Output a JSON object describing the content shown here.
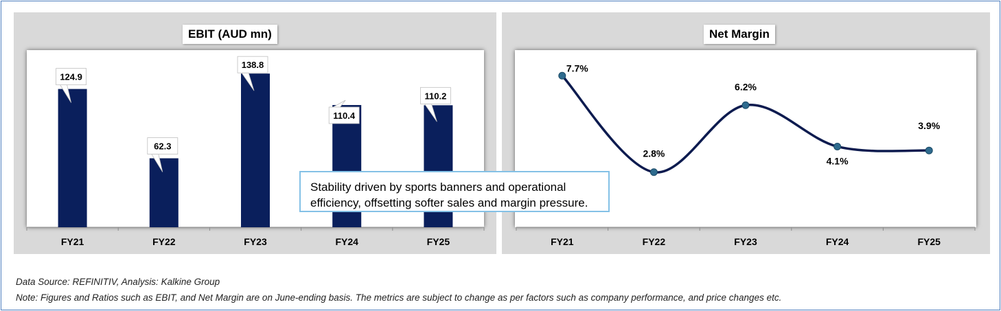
{
  "colors": {
    "bar": "#0a1f5c",
    "line": "#0d1b4f",
    "marker": "#2e6b8e",
    "callout_border": "#84c1e6",
    "panel": "#d9d9d9"
  },
  "chart_data": [
    {
      "type": "bar",
      "title": "EBIT (AUD mn)",
      "categories": [
        "FY21",
        "FY22",
        "FY23",
        "FY24",
        "FY25"
      ],
      "values": [
        124.9,
        62.3,
        138.8,
        110.4,
        110.2
      ],
      "data_labels": [
        "124.9",
        "62.3",
        "138.8",
        "110.4",
        "110.2"
      ],
      "xlabel": "",
      "ylabel": "",
      "ylim": [
        0,
        160
      ],
      "grid": false,
      "legend": "none"
    },
    {
      "type": "line",
      "title": "Net Margin",
      "categories": [
        "FY21",
        "FY22",
        "FY23",
        "FY24",
        "FY25"
      ],
      "values": [
        7.7,
        2.8,
        6.2,
        4.1,
        3.9
      ],
      "data_labels": [
        "7.7%",
        "2.8%",
        "6.2%",
        "4.1%",
        "3.9%"
      ],
      "xlabel": "",
      "ylabel": "",
      "ylim": [
        0,
        9
      ],
      "grid": false,
      "legend": "none"
    }
  ],
  "callout": {
    "line1": "Stability driven by sports banners and operational",
    "line2": "efficiency, offsetting softer sales and margin pressure."
  },
  "footer": {
    "source": "Data Source: REFINITIV, Analysis: Kalkine Group",
    "note": "Note: Figures and Ratios such as EBIT, and Net Margin are on  June-ending basis. The metrics are subject to change as per factors such as company performance, and price changes etc."
  }
}
